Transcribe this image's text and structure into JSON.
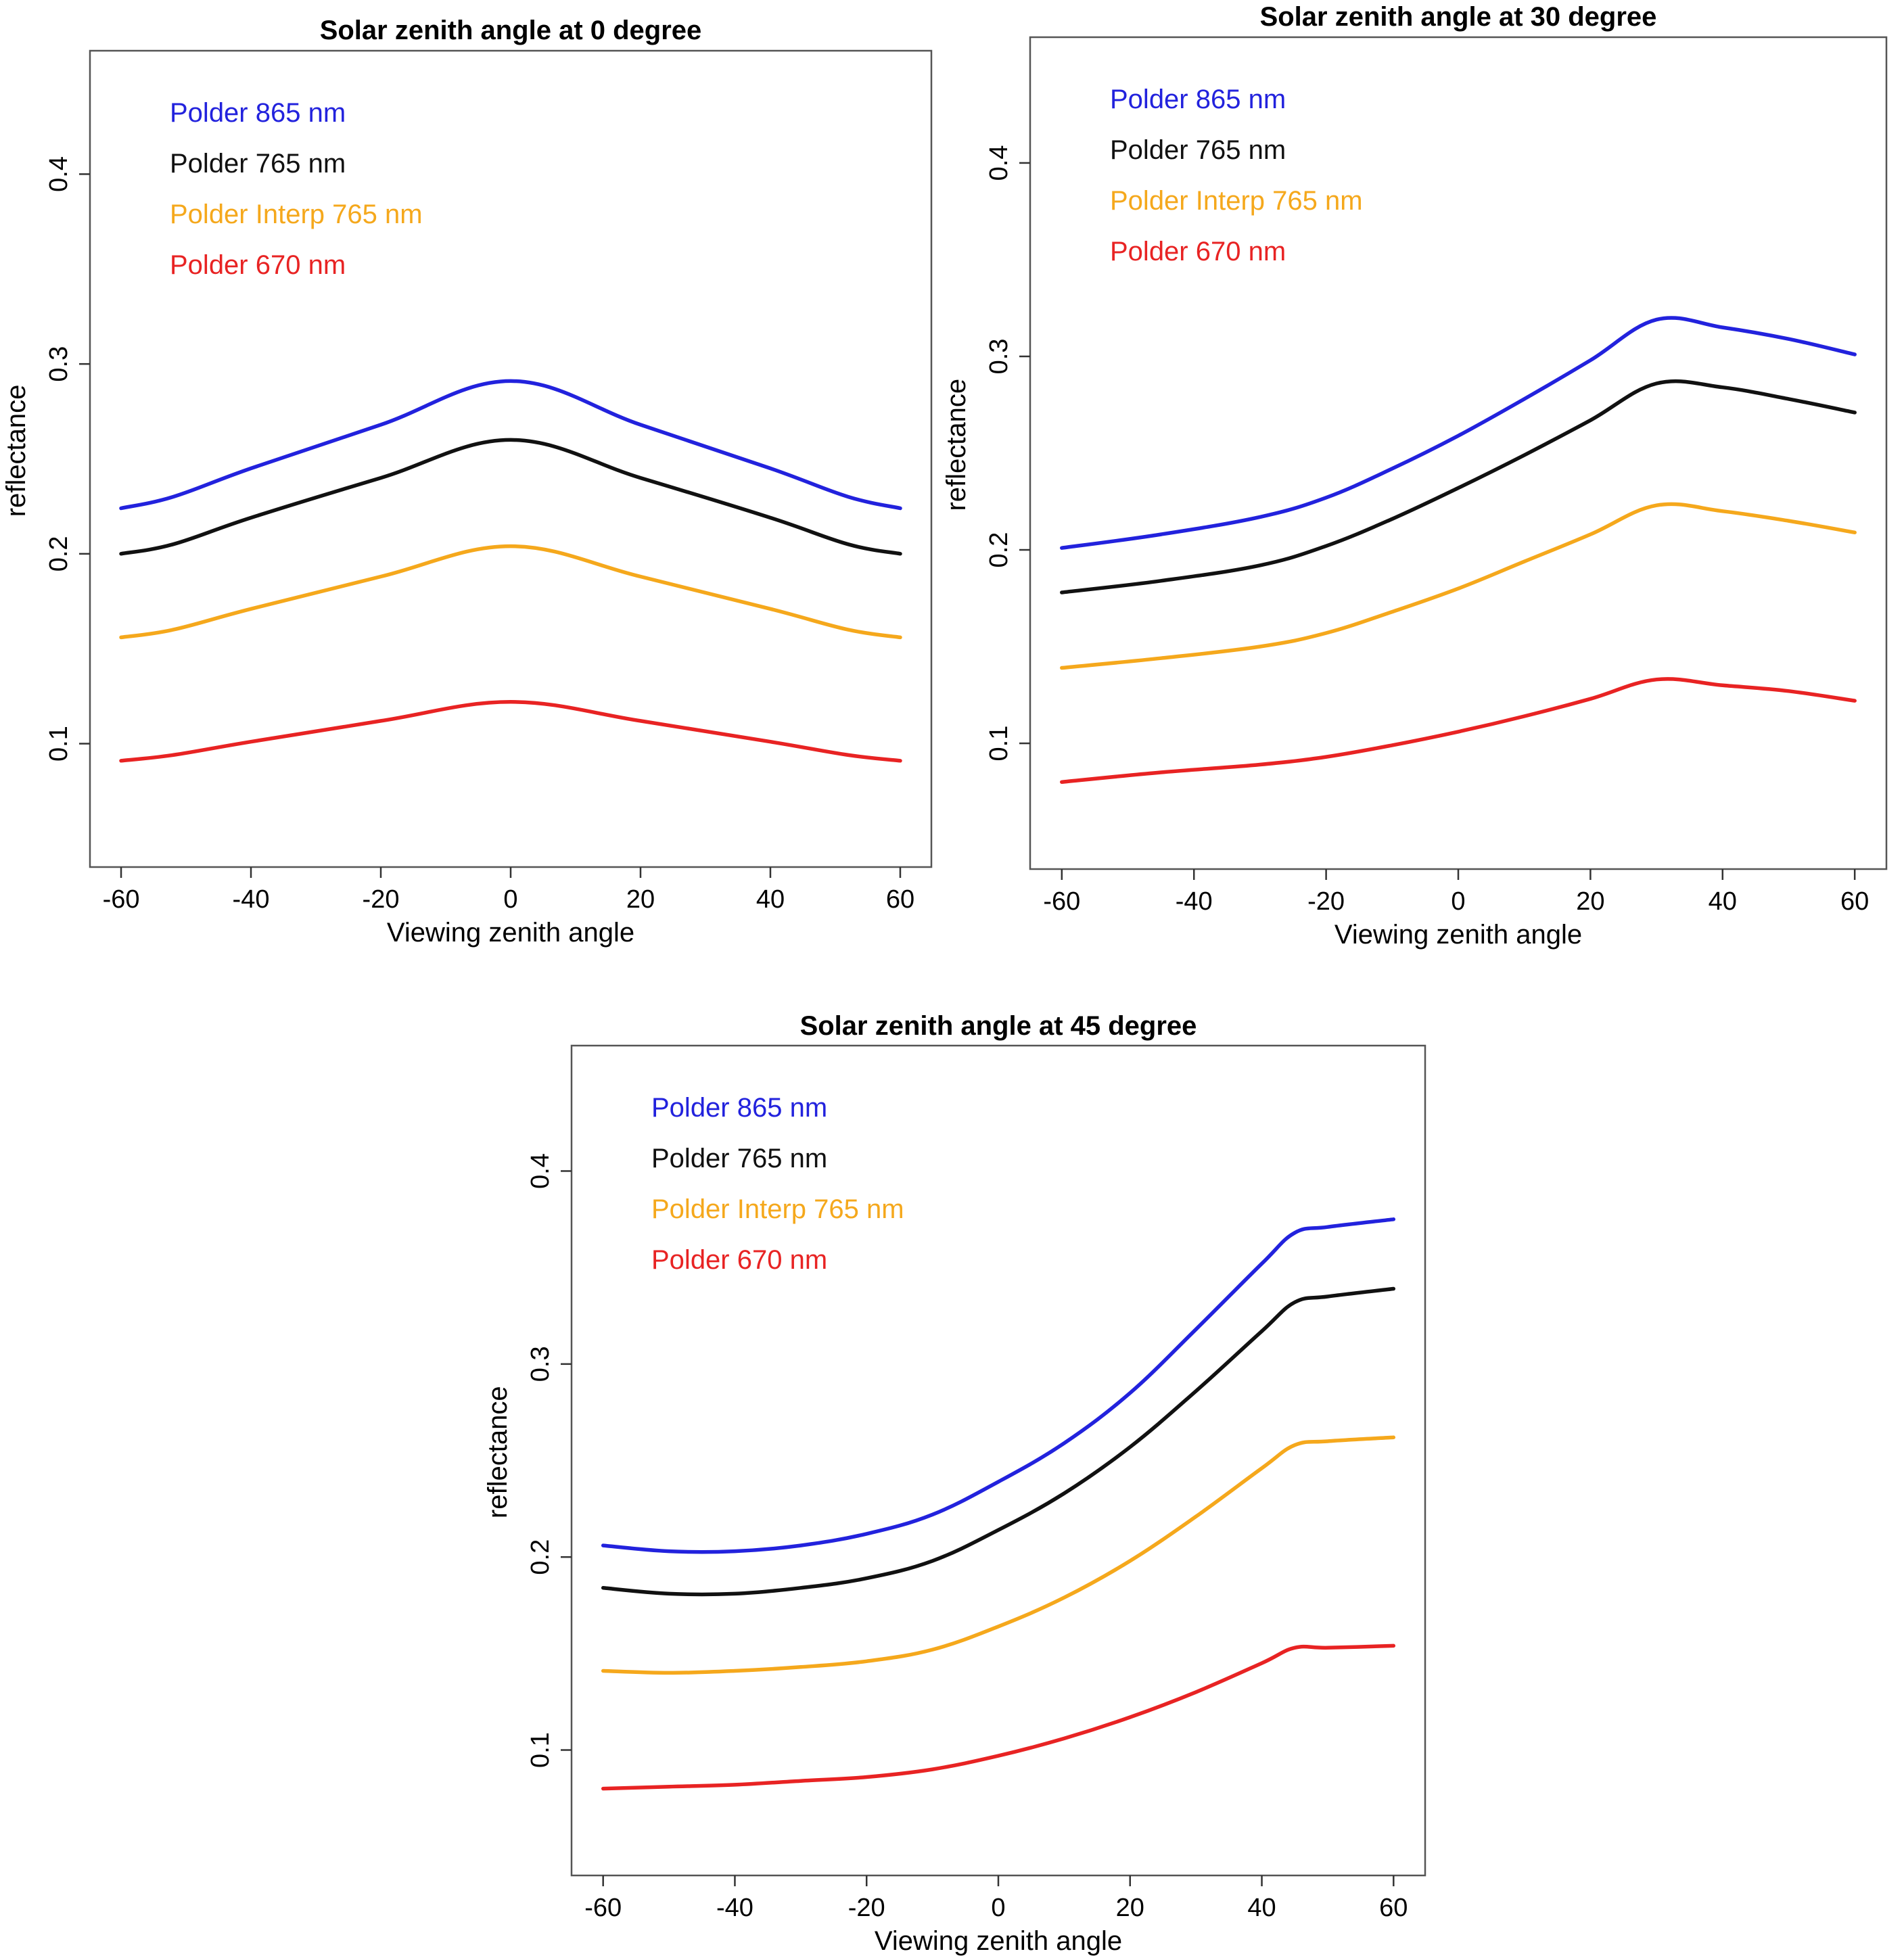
{
  "colors": {
    "polder_865": "#2222dd",
    "polder_765": "#111111",
    "polder_interp_765": "#f5a81c",
    "polder_670": "#e82323"
  },
  "chart_data": [
    {
      "type": "line",
      "title": "Solar zenith angle at 0 degree",
      "xlabel": "Viewing zenith angle",
      "ylabel": "reflectance",
      "xlim": [
        -60,
        60
      ],
      "ylim": [
        0.035,
        0.465
      ],
      "xticks": [
        -60,
        -40,
        -20,
        0,
        20,
        40,
        60
      ],
      "yticks": [
        0.1,
        0.2,
        0.3,
        0.4
      ],
      "xtick_labels": [
        "-60",
        "-40",
        "-20",
        "0",
        "20",
        "40",
        "60"
      ],
      "ytick_labels": [
        "0.1",
        "0.2",
        "0.3",
        "0.4"
      ],
      "grid": false,
      "legend_position": "top-left",
      "x": [
        -60,
        -52,
        -40,
        -20,
        0,
        20,
        40,
        52,
        60
      ],
      "series": [
        {
          "name": "Polder 865 nm",
          "color": "#2222dd",
          "values": [
            0.224,
            0.23,
            0.245,
            0.268,
            0.291,
            0.268,
            0.245,
            0.23,
            0.224
          ]
        },
        {
          "name": "Polder 765 nm",
          "color": "#111111",
          "values": [
            0.2,
            0.205,
            0.219,
            0.24,
            0.26,
            0.24,
            0.219,
            0.205,
            0.2
          ]
        },
        {
          "name": "Polder Interp 765 nm",
          "color": "#f5a81c",
          "values": [
            0.156,
            0.16,
            0.171,
            0.188,
            0.204,
            0.188,
            0.171,
            0.16,
            0.156
          ]
        },
        {
          "name": "Polder 670 nm",
          "color": "#e82323",
          "values": [
            0.091,
            0.094,
            0.101,
            0.112,
            0.122,
            0.112,
            0.101,
            0.094,
            0.091
          ]
        }
      ]
    },
    {
      "type": "line",
      "title": "Solar zenith angle at 30 degree",
      "xlabel": "Viewing zenith angle",
      "ylabel": "reflectance",
      "xlim": [
        -60,
        60
      ],
      "ylim": [
        0.035,
        0.465
      ],
      "xticks": [
        -60,
        -40,
        -20,
        0,
        20,
        40,
        60
      ],
      "yticks": [
        0.1,
        0.2,
        0.3,
        0.4
      ],
      "xtick_labels": [
        "-60",
        "-40",
        "-20",
        "0",
        "20",
        "40",
        "60"
      ],
      "ytick_labels": [
        "0.1",
        "0.2",
        "0.3",
        "0.4"
      ],
      "grid": false,
      "legend_position": "top-left",
      "x": [
        -60,
        -45,
        -30,
        -20,
        -10,
        0,
        10,
        20,
        30,
        40,
        50,
        60
      ],
      "series": [
        {
          "name": "Polder 865 nm",
          "color": "#2222dd",
          "values": [
            0.201,
            0.208,
            0.217,
            0.227,
            0.242,
            0.259,
            0.278,
            0.298,
            0.319,
            0.315,
            0.309,
            0.301
          ]
        },
        {
          "name": "Polder 765 nm",
          "color": "#111111",
          "values": [
            0.178,
            0.184,
            0.192,
            0.202,
            0.216,
            0.232,
            0.249,
            0.267,
            0.286,
            0.284,
            0.278,
            0.271
          ]
        },
        {
          "name": "Polder Interp 765 nm",
          "color": "#f5a81c",
          "values": [
            0.139,
            0.144,
            0.15,
            0.157,
            0.168,
            0.18,
            0.194,
            0.208,
            0.223,
            0.22,
            0.215,
            0.209
          ]
        },
        {
          "name": "Polder 670 nm",
          "color": "#e82323",
          "values": [
            0.08,
            0.085,
            0.089,
            0.093,
            0.099,
            0.106,
            0.114,
            0.123,
            0.133,
            0.13,
            0.127,
            0.122
          ]
        }
      ]
    },
    {
      "type": "line",
      "title": "Solar zenith angle at 45 degree",
      "xlabel": "Viewing zenith angle",
      "ylabel": "reflectance",
      "xlim": [
        -60,
        60
      ],
      "ylim": [
        0.035,
        0.465
      ],
      "xticks": [
        -60,
        -40,
        -20,
        0,
        20,
        40,
        60
      ],
      "yticks": [
        0.1,
        0.2,
        0.3,
        0.4
      ],
      "xtick_labels": [
        "-60",
        "-40",
        "-20",
        "0",
        "20",
        "40",
        "60"
      ],
      "ytick_labels": [
        "0.1",
        "0.2",
        "0.3",
        "0.4"
      ],
      "grid": false,
      "legend_position": "top-left",
      "x": [
        -60,
        -50,
        -40,
        -30,
        -20,
        -10,
        0,
        10,
        20,
        30,
        40,
        45,
        50,
        60
      ],
      "series": [
        {
          "name": "Polder 865 nm",
          "color": "#2222dd",
          "values": [
            0.206,
            0.203,
            0.203,
            0.206,
            0.212,
            0.222,
            0.239,
            0.259,
            0.285,
            0.318,
            0.352,
            0.368,
            0.371,
            0.375
          ]
        },
        {
          "name": "Polder 765 nm",
          "color": "#111111",
          "values": [
            0.184,
            0.181,
            0.181,
            0.184,
            0.189,
            0.198,
            0.214,
            0.233,
            0.257,
            0.286,
            0.317,
            0.332,
            0.335,
            0.339
          ]
        },
        {
          "name": "Polder Interp 765 nm",
          "color": "#f5a81c",
          "values": [
            0.141,
            0.14,
            0.141,
            0.143,
            0.146,
            0.152,
            0.164,
            0.179,
            0.198,
            0.221,
            0.246,
            0.258,
            0.26,
            0.262
          ]
        },
        {
          "name": "Polder 670 nm",
          "color": "#e82323",
          "values": [
            0.08,
            0.081,
            0.082,
            0.084,
            0.086,
            0.09,
            0.097,
            0.106,
            0.117,
            0.13,
            0.145,
            0.153,
            0.153,
            0.154
          ]
        }
      ]
    }
  ]
}
